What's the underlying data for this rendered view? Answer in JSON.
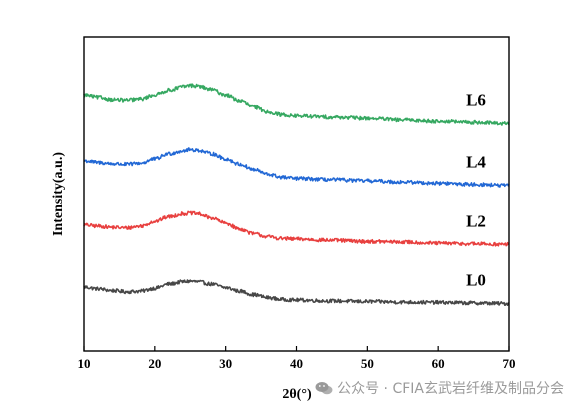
{
  "chart_data": {
    "type": "line",
    "xlabel": "2θ(°)",
    "ylabel": "Intensity(a.u.)",
    "xlim": [
      10,
      70
    ],
    "xticks": [
      "10",
      "20",
      "30",
      "40",
      "50",
      "60",
      "70"
    ],
    "yticks_shown": false,
    "grid": false,
    "legend": "none (series labeled inline at right)",
    "series": [
      {
        "name": "L0",
        "color": "#474747",
        "x": [
          10,
          12,
          14,
          16,
          18,
          20,
          22,
          24,
          25,
          26,
          28,
          30,
          32,
          34,
          36,
          38,
          40,
          45,
          50,
          55,
          60,
          65,
          70
        ],
        "y": [
          0.28,
          0.25,
          0.22,
          0.2,
          0.21,
          0.26,
          0.33,
          0.37,
          0.38,
          0.37,
          0.33,
          0.27,
          0.21,
          0.15,
          0.1,
          0.07,
          0.06,
          0.045,
          0.035,
          0.025,
          0.02,
          0.01,
          0.0
        ]
      },
      {
        "name": "L2",
        "color": "#e8403f",
        "x": [
          10,
          12,
          14,
          16,
          18,
          20,
          22,
          24,
          25,
          26,
          28,
          30,
          32,
          34,
          36,
          38,
          40,
          45,
          50,
          55,
          60,
          65,
          70
        ],
        "y": [
          1.33,
          1.31,
          1.29,
          1.28,
          1.31,
          1.39,
          1.47,
          1.52,
          1.53,
          1.52,
          1.45,
          1.36,
          1.26,
          1.18,
          1.13,
          1.1,
          1.09,
          1.07,
          1.05,
          1.04,
          1.02,
          1.01,
          1.0
        ]
      },
      {
        "name": "L4",
        "color": "#2268d5",
        "x": [
          10,
          12,
          14,
          16,
          18,
          20,
          22,
          24,
          25,
          26,
          28,
          30,
          32,
          34,
          36,
          38,
          40,
          45,
          50,
          55,
          60,
          65,
          70
        ],
        "y": [
          2.41,
          2.38,
          2.36,
          2.35,
          2.37,
          2.44,
          2.53,
          2.58,
          2.6,
          2.59,
          2.53,
          2.44,
          2.35,
          2.26,
          2.18,
          2.13,
          2.11,
          2.09,
          2.07,
          2.05,
          2.03,
          2.01,
          1.99
        ]
      },
      {
        "name": "L6",
        "color": "#36a861",
        "x": [
          10,
          12,
          14,
          16,
          18,
          20,
          22,
          24,
          25,
          26,
          28,
          30,
          32,
          34,
          36,
          38,
          40,
          45,
          50,
          55,
          60,
          65,
          70
        ],
        "y": [
          3.52,
          3.48,
          3.44,
          3.43,
          3.45,
          3.52,
          3.6,
          3.66,
          3.68,
          3.67,
          3.61,
          3.52,
          3.42,
          3.32,
          3.24,
          3.19,
          3.17,
          3.15,
          3.13,
          3.1,
          3.08,
          3.06,
          3.04
        ]
      }
    ]
  },
  "watermark": {
    "icon": "wechat-icon",
    "text": "公众号 · CFIA玄武岩纤维及制品分会"
  }
}
